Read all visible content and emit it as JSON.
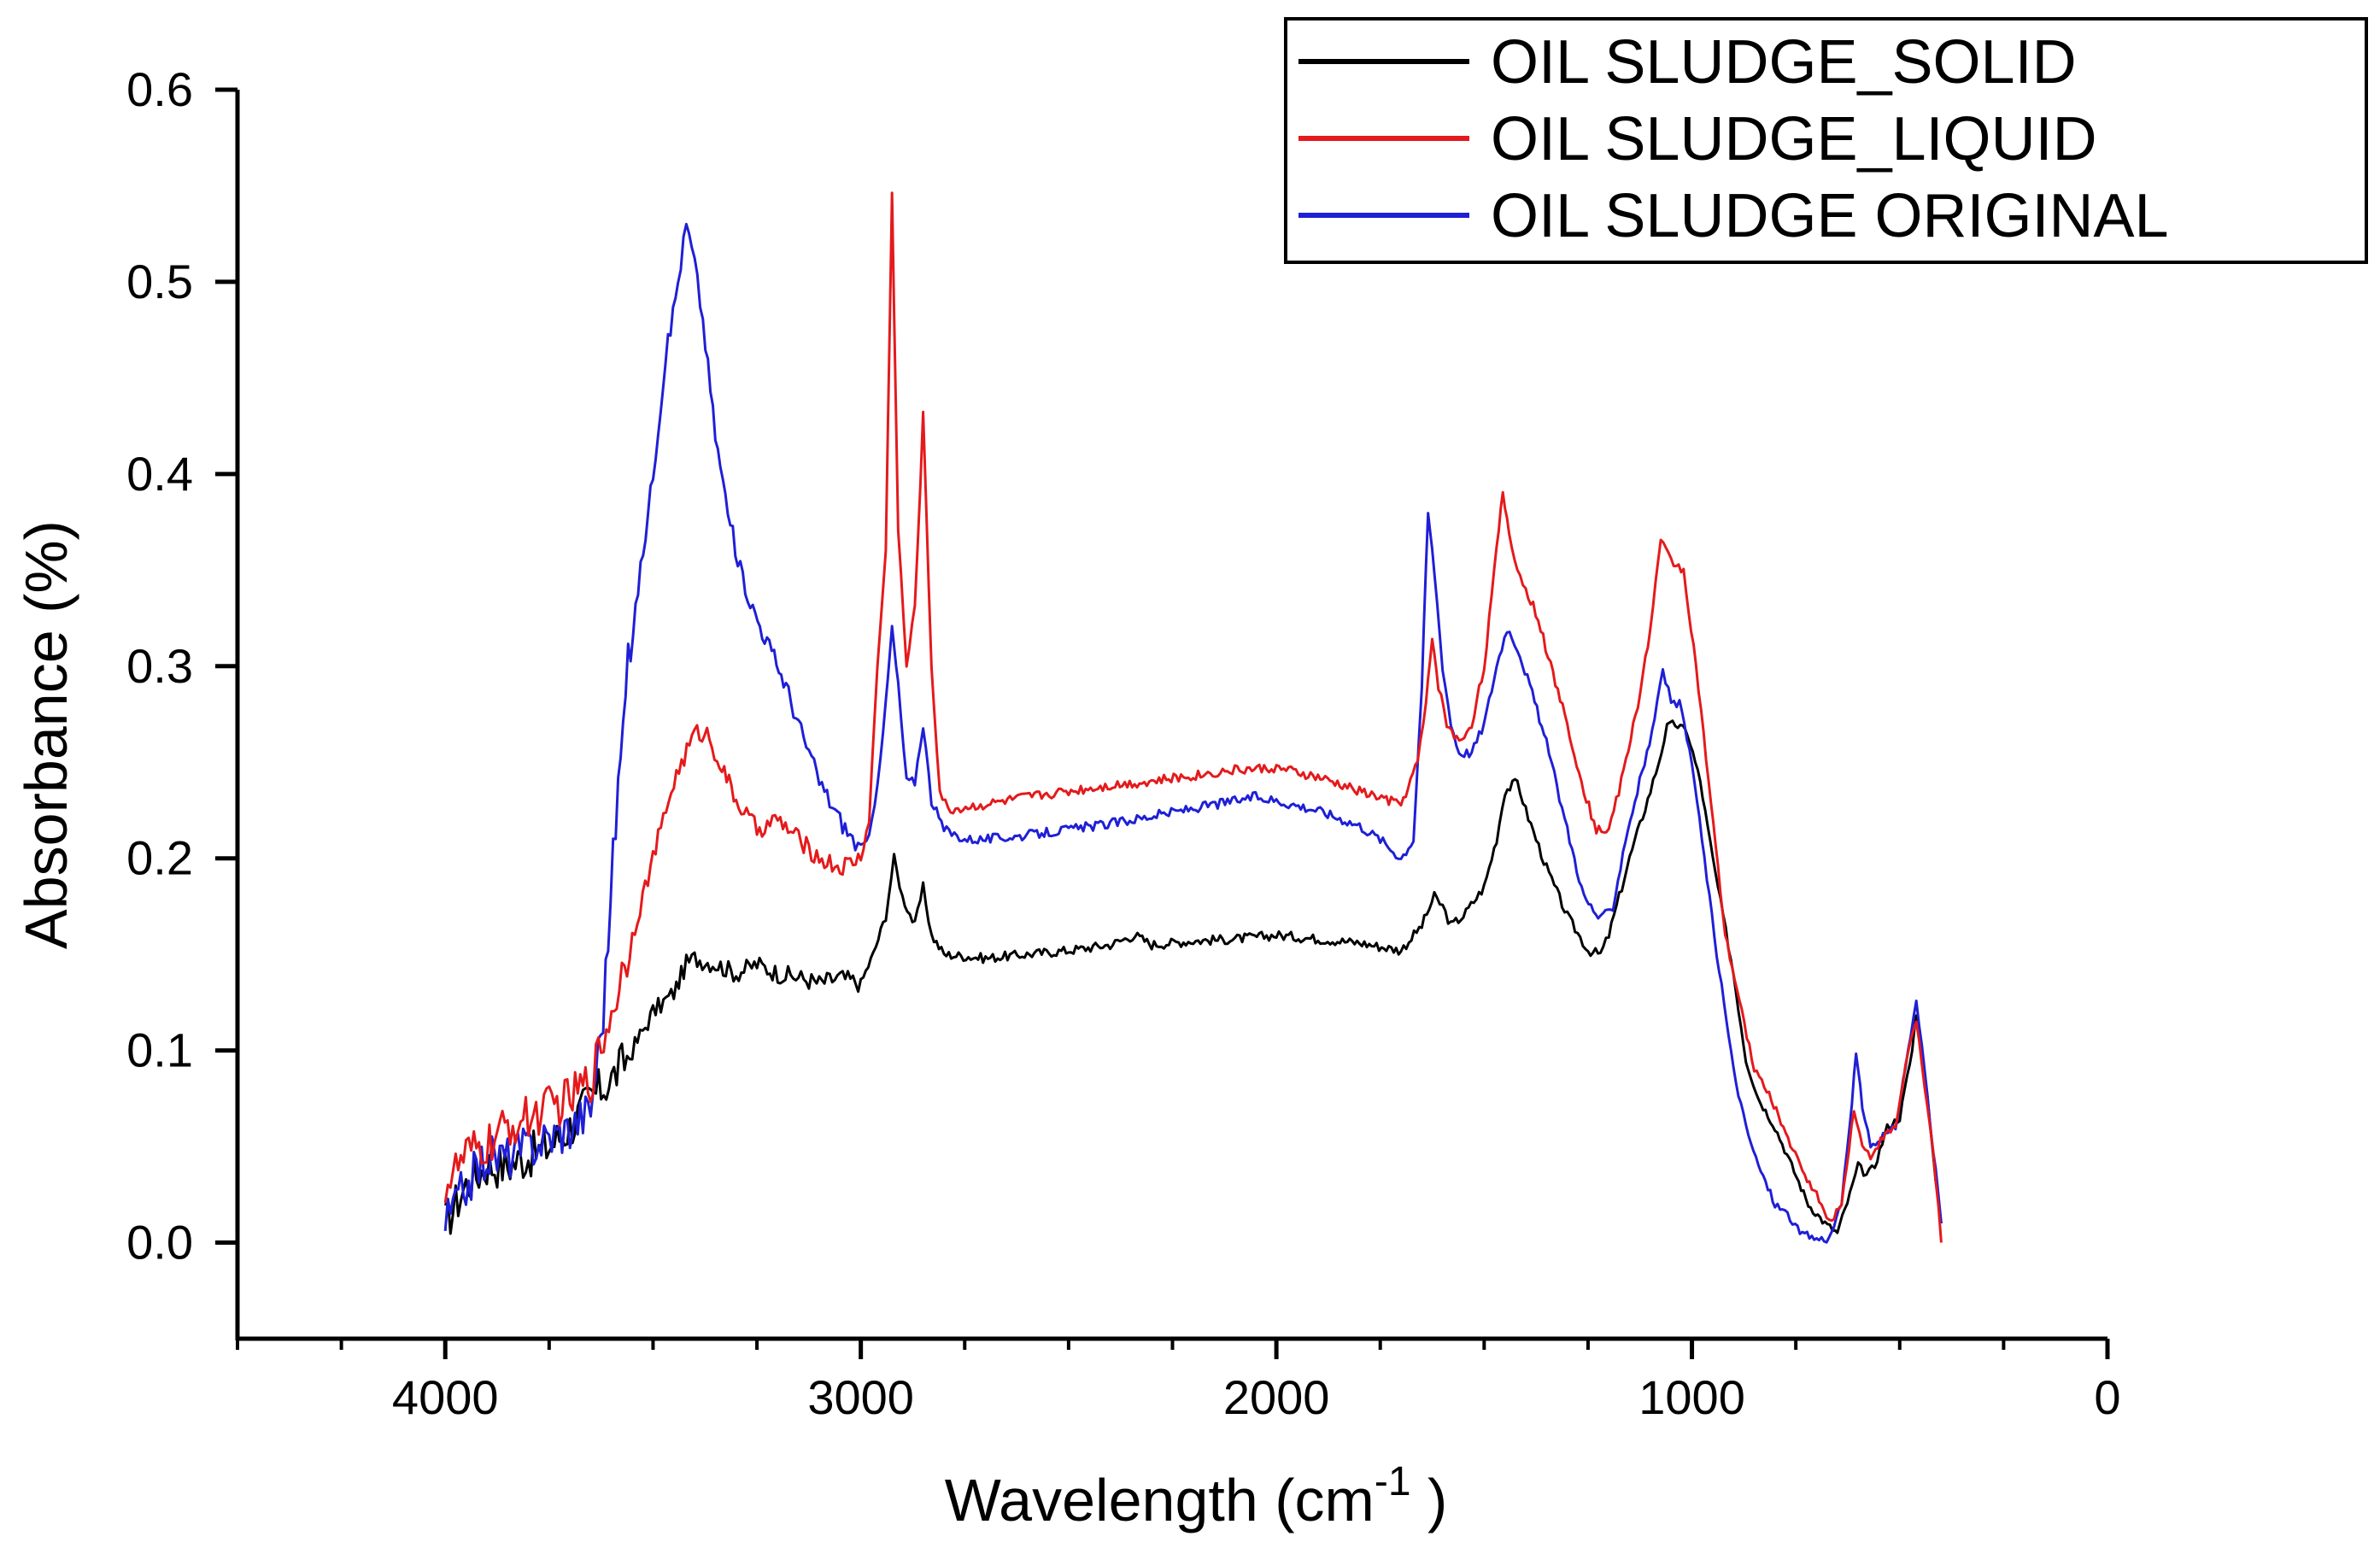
{
  "chart_data": {
    "type": "line",
    "title": "",
    "xlabel": "Wavelength (cm",
    "xlabel_superscript": "-1",
    "xlabel_suffix": " )",
    "ylabel": "Absorbance (%)",
    "xlim": [
      4500,
      0
    ],
    "ylim": [
      -0.05,
      0.6
    ],
    "x_reversed": true,
    "x_ticks": [
      4000,
      3000,
      2000,
      1000,
      0
    ],
    "x_tick_labels": [
      "4000",
      "3000",
      "2000",
      "1000",
      "0"
    ],
    "y_ticks": [
      0.0,
      0.1,
      0.2,
      0.3,
      0.4,
      0.5,
      0.6
    ],
    "y_tick_labels": [
      "0.0",
      "0.1",
      "0.2",
      "0.3",
      "0.4",
      "0.5",
      "0.6"
    ],
    "grid": false,
    "legend_position": "top-right",
    "series": [
      {
        "name": "OIL SLUDGE_SOLID",
        "color": "#000000",
        "points": [
          [
            4000,
            0.01
          ],
          [
            3950,
            0.03
          ],
          [
            3900,
            0.04
          ],
          [
            3850,
            0.04
          ],
          [
            3800,
            0.045
          ],
          [
            3750,
            0.05
          ],
          [
            3700,
            0.06
          ],
          [
            3650,
            0.075
          ],
          [
            3600,
            0.085
          ],
          [
            3550,
            0.1
          ],
          [
            3500,
            0.12
          ],
          [
            3450,
            0.13
          ],
          [
            3420,
            0.145
          ],
          [
            3400,
            0.148
          ],
          [
            3350,
            0.145
          ],
          [
            3300,
            0.14
          ],
          [
            3250,
            0.145
          ],
          [
            3200,
            0.14
          ],
          [
            3150,
            0.138
          ],
          [
            3100,
            0.135
          ],
          [
            3050,
            0.138
          ],
          [
            3000,
            0.135
          ],
          [
            2970,
            0.15
          ],
          [
            2940,
            0.17
          ],
          [
            2920,
            0.2
          ],
          [
            2900,
            0.18
          ],
          [
            2870,
            0.165
          ],
          [
            2850,
            0.185
          ],
          [
            2830,
            0.16
          ],
          [
            2800,
            0.15
          ],
          [
            2700,
            0.148
          ],
          [
            2600,
            0.15
          ],
          [
            2500,
            0.152
          ],
          [
            2400,
            0.155
          ],
          [
            2340,
            0.16
          ],
          [
            2300,
            0.155
          ],
          [
            2200,
            0.157
          ],
          [
            2100,
            0.158
          ],
          [
            2000,
            0.16
          ],
          [
            1900,
            0.158
          ],
          [
            1800,
            0.156
          ],
          [
            1700,
            0.152
          ],
          [
            1650,
            0.165
          ],
          [
            1620,
            0.18
          ],
          [
            1600,
            0.175
          ],
          [
            1580,
            0.165
          ],
          [
            1550,
            0.17
          ],
          [
            1500,
            0.185
          ],
          [
            1470,
            0.21
          ],
          [
            1450,
            0.235
          ],
          [
            1420,
            0.24
          ],
          [
            1400,
            0.225
          ],
          [
            1350,
            0.195
          ],
          [
            1300,
            0.17
          ],
          [
            1250,
            0.152
          ],
          [
            1220,
            0.15
          ],
          [
            1200,
            0.16
          ],
          [
            1150,
            0.2
          ],
          [
            1100,
            0.235
          ],
          [
            1080,
            0.25
          ],
          [
            1060,
            0.268
          ],
          [
            1040,
            0.27
          ],
          [
            1010,
            0.265
          ],
          [
            980,
            0.24
          ],
          [
            950,
            0.2
          ],
          [
            900,
            0.14
          ],
          [
            870,
            0.095
          ],
          [
            840,
            0.075
          ],
          [
            800,
            0.06
          ],
          [
            760,
            0.04
          ],
          [
            720,
            0.02
          ],
          [
            680,
            0.01
          ],
          [
            650,
            0.005
          ],
          [
            620,
            0.025
          ],
          [
            600,
            0.04
          ],
          [
            580,
            0.035
          ],
          [
            560,
            0.04
          ],
          [
            530,
            0.06
          ],
          [
            500,
            0.065
          ],
          [
            470,
            0.1
          ],
          [
            460,
            0.12
          ],
          [
            440,
            0.09
          ],
          [
            420,
            0.045
          ],
          [
            400,
            0.01
          ]
        ]
      },
      {
        "name": "OIL SLUDGE_LIQUID",
        "color": "#e41a1c",
        "points": [
          [
            4000,
            0.03
          ],
          [
            3950,
            0.045
          ],
          [
            3900,
            0.05
          ],
          [
            3850,
            0.06
          ],
          [
            3800,
            0.065
          ],
          [
            3750,
            0.07
          ],
          [
            3700,
            0.075
          ],
          [
            3650,
            0.085
          ],
          [
            3600,
            0.12
          ],
          [
            3550,
            0.16
          ],
          [
            3500,
            0.2
          ],
          [
            3450,
            0.24
          ],
          [
            3400,
            0.265
          ],
          [
            3370,
            0.265
          ],
          [
            3340,
            0.25
          ],
          [
            3300,
            0.23
          ],
          [
            3250,
            0.215
          ],
          [
            3200,
            0.22
          ],
          [
            3150,
            0.21
          ],
          [
            3100,
            0.2
          ],
          [
            3050,
            0.195
          ],
          [
            3000,
            0.2
          ],
          [
            2980,
            0.22
          ],
          [
            2960,
            0.3
          ],
          [
            2940,
            0.36
          ],
          [
            2925,
            0.545
          ],
          [
            2910,
            0.37
          ],
          [
            2890,
            0.3
          ],
          [
            2870,
            0.33
          ],
          [
            2850,
            0.43
          ],
          [
            2830,
            0.3
          ],
          [
            2810,
            0.235
          ],
          [
            2790,
            0.225
          ],
          [
            2700,
            0.228
          ],
          [
            2600,
            0.232
          ],
          [
            2500,
            0.235
          ],
          [
            2400,
            0.238
          ],
          [
            2300,
            0.24
          ],
          [
            2200,
            0.243
          ],
          [
            2100,
            0.246
          ],
          [
            2000,
            0.247
          ],
          [
            1900,
            0.242
          ],
          [
            1800,
            0.235
          ],
          [
            1700,
            0.228
          ],
          [
            1660,
            0.25
          ],
          [
            1640,
            0.28
          ],
          [
            1625,
            0.315
          ],
          [
            1610,
            0.29
          ],
          [
            1590,
            0.27
          ],
          [
            1560,
            0.26
          ],
          [
            1530,
            0.27
          ],
          [
            1500,
            0.3
          ],
          [
            1470,
            0.36
          ],
          [
            1455,
            0.39
          ],
          [
            1440,
            0.37
          ],
          [
            1420,
            0.35
          ],
          [
            1400,
            0.34
          ],
          [
            1370,
            0.325
          ],
          [
            1340,
            0.3
          ],
          [
            1300,
            0.27
          ],
          [
            1260,
            0.235
          ],
          [
            1230,
            0.215
          ],
          [
            1200,
            0.215
          ],
          [
            1170,
            0.24
          ],
          [
            1130,
            0.28
          ],
          [
            1100,
            0.32
          ],
          [
            1075,
            0.365
          ],
          [
            1050,
            0.355
          ],
          [
            1020,
            0.35
          ],
          [
            990,
            0.3
          ],
          [
            960,
            0.24
          ],
          [
            920,
            0.16
          ],
          [
            880,
            0.12
          ],
          [
            850,
            0.09
          ],
          [
            820,
            0.08
          ],
          [
            780,
            0.06
          ],
          [
            740,
            0.04
          ],
          [
            700,
            0.025
          ],
          [
            670,
            0.01
          ],
          [
            640,
            0.02
          ],
          [
            610,
            0.07
          ],
          [
            590,
            0.05
          ],
          [
            570,
            0.045
          ],
          [
            540,
            0.055
          ],
          [
            510,
            0.06
          ],
          [
            480,
            0.1
          ],
          [
            460,
            0.115
          ],
          [
            440,
            0.08
          ],
          [
            420,
            0.05
          ],
          [
            400,
            0.0
          ]
        ]
      },
      {
        "name": "OIL SLUDGE ORIGINAL",
        "color": "#1f1fd6",
        "points": [
          [
            4000,
            0.01
          ],
          [
            3950,
            0.03
          ],
          [
            3900,
            0.045
          ],
          [
            3850,
            0.045
          ],
          [
            3800,
            0.05
          ],
          [
            3750,
            0.055
          ],
          [
            3700,
            0.06
          ],
          [
            3650,
            0.07
          ],
          [
            3620,
            0.12
          ],
          [
            3590,
            0.22
          ],
          [
            3560,
            0.3
          ],
          [
            3530,
            0.35
          ],
          [
            3500,
            0.4
          ],
          [
            3470,
            0.46
          ],
          [
            3440,
            0.5
          ],
          [
            3420,
            0.53
          ],
          [
            3400,
            0.51
          ],
          [
            3380,
            0.48
          ],
          [
            3350,
            0.42
          ],
          [
            3320,
            0.38
          ],
          [
            3290,
            0.35
          ],
          [
            3260,
            0.33
          ],
          [
            3220,
            0.31
          ],
          [
            3180,
            0.29
          ],
          [
            3150,
            0.27
          ],
          [
            3100,
            0.24
          ],
          [
            3050,
            0.22
          ],
          [
            3020,
            0.21
          ],
          [
            3000,
            0.205
          ],
          [
            2980,
            0.21
          ],
          [
            2960,
            0.24
          ],
          [
            2940,
            0.28
          ],
          [
            2925,
            0.32
          ],
          [
            2910,
            0.29
          ],
          [
            2890,
            0.24
          ],
          [
            2870,
            0.24
          ],
          [
            2850,
            0.27
          ],
          [
            2830,
            0.23
          ],
          [
            2800,
            0.215
          ],
          [
            2750,
            0.21
          ],
          [
            2700,
            0.21
          ],
          [
            2600,
            0.212
          ],
          [
            2500,
            0.215
          ],
          [
            2400,
            0.218
          ],
          [
            2300,
            0.222
          ],
          [
            2200,
            0.226
          ],
          [
            2100,
            0.23
          ],
          [
            2050,
            0.232
          ],
          [
            2000,
            0.23
          ],
          [
            1900,
            0.225
          ],
          [
            1800,
            0.217
          ],
          [
            1750,
            0.21
          ],
          [
            1700,
            0.2
          ],
          [
            1670,
            0.21
          ],
          [
            1650,
            0.29
          ],
          [
            1635,
            0.38
          ],
          [
            1620,
            0.35
          ],
          [
            1600,
            0.3
          ],
          [
            1580,
            0.27
          ],
          [
            1560,
            0.255
          ],
          [
            1530,
            0.255
          ],
          [
            1500,
            0.27
          ],
          [
            1470,
            0.3
          ],
          [
            1445,
            0.32
          ],
          [
            1420,
            0.31
          ],
          [
            1390,
            0.29
          ],
          [
            1350,
            0.26
          ],
          [
            1300,
            0.215
          ],
          [
            1260,
            0.18
          ],
          [
            1220,
            0.168
          ],
          [
            1190,
            0.175
          ],
          [
            1160,
            0.21
          ],
          [
            1120,
            0.245
          ],
          [
            1090,
            0.27
          ],
          [
            1070,
            0.3
          ],
          [
            1050,
            0.28
          ],
          [
            1030,
            0.28
          ],
          [
            1000,
            0.25
          ],
          [
            970,
            0.2
          ],
          [
            940,
            0.15
          ],
          [
            900,
            0.09
          ],
          [
            870,
            0.06
          ],
          [
            840,
            0.04
          ],
          [
            800,
            0.02
          ],
          [
            770,
            0.015
          ],
          [
            740,
            0.005
          ],
          [
            700,
            0.002
          ],
          [
            670,
            0.002
          ],
          [
            640,
            0.02
          ],
          [
            620,
            0.06
          ],
          [
            605,
            0.1
          ],
          [
            590,
            0.07
          ],
          [
            570,
            0.05
          ],
          [
            540,
            0.055
          ],
          [
            510,
            0.06
          ],
          [
            480,
            0.1
          ],
          [
            460,
            0.125
          ],
          [
            440,
            0.09
          ],
          [
            420,
            0.05
          ],
          [
            400,
            0.01
          ]
        ]
      }
    ]
  }
}
